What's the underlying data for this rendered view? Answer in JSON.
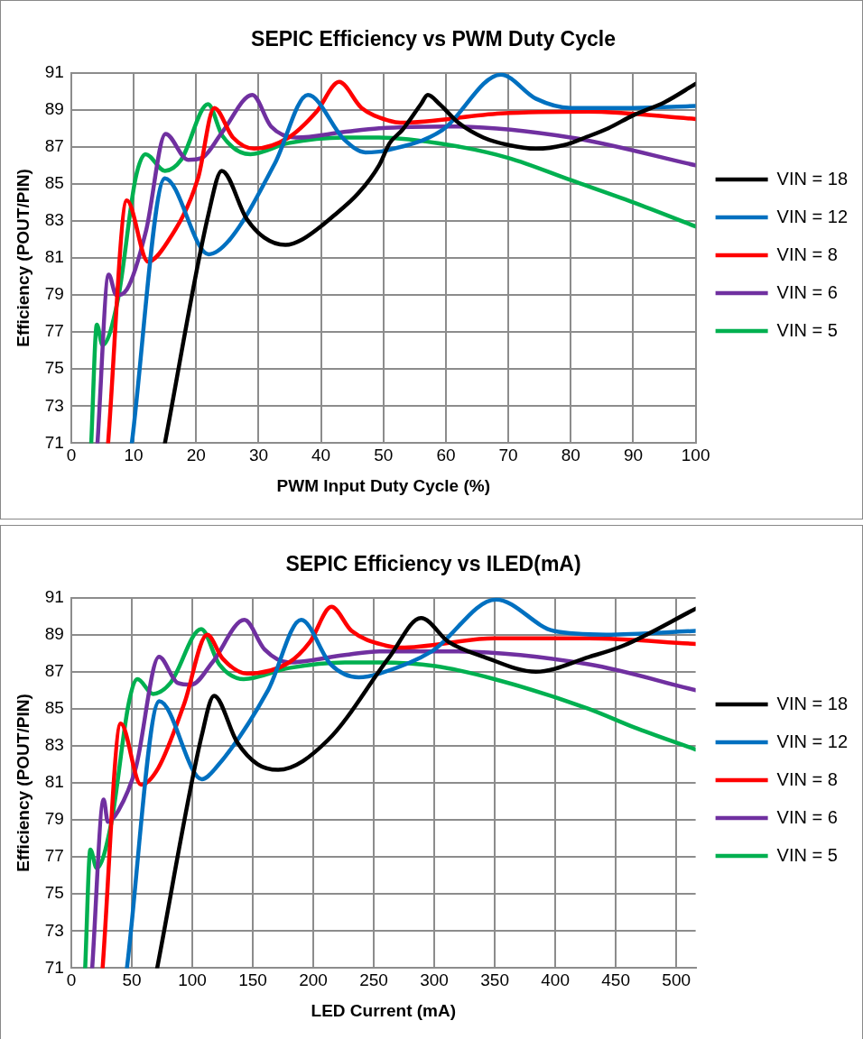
{
  "chart_data": [
    {
      "type": "line",
      "title": "SEPIC Efficiency vs PWM Duty Cycle",
      "xlabel": "PWM Input Duty Cycle (%)",
      "ylabel": "Efficiency (POUT/PIN)",
      "xlim": [
        0,
        100
      ],
      "xticks": [
        0,
        10,
        20,
        30,
        40,
        50,
        60,
        70,
        80,
        90,
        100
      ],
      "ylim": [
        71,
        91
      ],
      "yticks": [
        71,
        73,
        75,
        77,
        79,
        81,
        83,
        85,
        87,
        89,
        91
      ],
      "grid": true,
      "legend": "right",
      "marker": "none",
      "series": [
        {
          "name": "VIN = 18",
          "color": "#000000",
          "x": [
            15,
            22,
            24.1,
            28.1,
            30.9,
            34.3,
            37,
            42.1,
            46,
            49.3,
            51,
            53,
            56,
            57.1,
            59,
            62,
            66,
            70,
            74.4,
            79,
            82.3,
            86,
            90,
            95,
            100
          ],
          "values": [
            71,
            83.4,
            85.7,
            83.1,
            82.1,
            81.7,
            82,
            83.3,
            84.5,
            86,
            87.2,
            87.9,
            89.3,
            89.8,
            89.3,
            88.3,
            87.5,
            87.1,
            86.9,
            87.1,
            87.5,
            88,
            88.7,
            89.4,
            90.4
          ]
        },
        {
          "name": "VIN = 12",
          "color": "#0070c0",
          "x": [
            9.7,
            15,
            22,
            25.4,
            32.6,
            37.9,
            43.7,
            47.1,
            50.4,
            59.4,
            68.8,
            74.4,
            80,
            88.4,
            100
          ],
          "values": [
            71,
            85.3,
            81.2,
            82,
            86.1,
            89.8,
            87.4,
            86.7,
            86.8,
            87.9,
            90.9,
            89.6,
            89.1,
            89.1,
            89.2
          ]
        },
        {
          "name": "VIN = 8",
          "color": "#ff0000",
          "x": [
            5.9,
            8.9,
            12.3,
            15.3,
            20.3,
            22.9,
            25.9,
            29.3,
            34.8,
            39.3,
            42.9,
            46.5,
            51,
            52.7,
            68.8,
            82.8,
            100
          ],
          "values": [
            71,
            84.1,
            80.8,
            81.8,
            85.3,
            89.1,
            87.5,
            86.9,
            87.5,
            88.9,
            90.5,
            89.1,
            88.4,
            88.3,
            88.8,
            88.9,
            88.5
          ]
        },
        {
          "name": "VIN = 6",
          "color": "#7030a0",
          "x": [
            4.2,
            6,
            7.2,
            8.9,
            12,
            15.1,
            18.7,
            20.9,
            24.2,
            29,
            32,
            36,
            43.7,
            49.3,
            60.5,
            80,
            100
          ],
          "values": [
            71,
            80.1,
            79,
            79.3,
            82.5,
            87.7,
            86.3,
            86.4,
            87.8,
            89.8,
            88.1,
            87.5,
            87.8,
            88,
            88.1,
            87.5,
            86
          ]
        },
        {
          "name": "VIN = 5",
          "color": "#00b050",
          "x": [
            3.2,
            4.1,
            5,
            7.5,
            10.3,
            11.9,
            15,
            17.6,
            21.9,
            24.2,
            28.7,
            34.8,
            43.7,
            49.3,
            60.5,
            70,
            80,
            90,
            100
          ],
          "values": [
            71,
            77.4,
            76.3,
            78.8,
            85.3,
            86.6,
            85.7,
            86.3,
            89.3,
            87.6,
            86.6,
            87.2,
            87.5,
            87.5,
            87.1,
            86.4,
            85.2,
            84,
            82.7
          ]
        }
      ]
    },
    {
      "type": "line",
      "title": "SEPIC Efficiency vs ILED(mA)",
      "xlabel": "LED Current (mA)",
      "ylabel": "Efficiency (POUT/PIN)",
      "xlim": [
        0,
        516
      ],
      "xticks": [
        0,
        50,
        100,
        150,
        200,
        250,
        300,
        350,
        400,
        450,
        500
      ],
      "ylim": [
        71,
        91
      ],
      "yticks": [
        71,
        73,
        75,
        77,
        79,
        81,
        83,
        85,
        87,
        89,
        91
      ],
      "grid": true,
      "legend": "right",
      "marker": "none",
      "series": [
        {
          "name": "VIN = 18",
          "color": "#000000",
          "x": [
            71,
            108,
            118,
            137,
            154,
            171,
            212,
            263,
            289,
            312,
            341,
            384,
            428,
            456,
            516
          ],
          "values": [
            71,
            83.6,
            85.7,
            83.2,
            82,
            81.7,
            83.3,
            87.8,
            89.9,
            88.6,
            87.8,
            87,
            87.8,
            88.4,
            90.4
          ]
        },
        {
          "name": "VIN = 12",
          "color": "#0070c0",
          "x": [
            46,
            72.8,
            108,
            119.4,
            162.6,
            190,
            214.4,
            237.5,
            254.7,
            298,
            351,
            398.7,
            442,
            516
          ],
          "values": [
            71,
            85.4,
            81.2,
            81.8,
            86,
            89.8,
            87.4,
            86.7,
            86.9,
            88.1,
            90.9,
            89.2,
            89,
            89.2
          ]
        },
        {
          "name": "VIN = 8",
          "color": "#ff0000",
          "x": [
            25.9,
            40.9,
            57.6,
            71.9,
            93.5,
            112.3,
            125.2,
            145.3,
            180,
            197.2,
            215,
            231.7,
            260.5,
            272,
            349.7,
            427.5,
            516
          ],
          "values": [
            71,
            84.2,
            80.9,
            81.8,
            85.3,
            89,
            87.7,
            86.9,
            87.5,
            88.6,
            90.5,
            89.2,
            88.4,
            88.3,
            88.8,
            88.8,
            88.5
          ]
        },
        {
          "name": "VIN = 6",
          "color": "#7030a0",
          "x": [
            17.3,
            26.8,
            30.2,
            38.9,
            53.3,
            72.5,
            87.8,
            99.3,
            116.6,
            143.1,
            159.8,
            180,
            226,
            254.7,
            312.3,
            427.5,
            516
          ],
          "values": [
            71,
            80.1,
            78.9,
            79.5,
            81.8,
            87.8,
            86.4,
            86.3,
            87.5,
            89.8,
            88.2,
            87.5,
            87.9,
            88.1,
            88.1,
            87.4,
            86
          ]
        },
        {
          "name": "VIN = 5",
          "color": "#00b050",
          "x": [
            11.5,
            15.8,
            21,
            33,
            47.5,
            54.7,
            67.6,
            82,
            107.4,
            122.3,
            142.5,
            180,
            226,
            254.7,
            300.8,
            349.7,
            427.5,
            465,
            516
          ],
          "values": [
            71,
            77.4,
            76.4,
            78.8,
            85.3,
            86.6,
            85.8,
            86.4,
            89.3,
            87.4,
            86.6,
            87.2,
            87.5,
            87.5,
            87.3,
            86.6,
            85,
            84,
            82.8
          ]
        }
      ]
    }
  ]
}
